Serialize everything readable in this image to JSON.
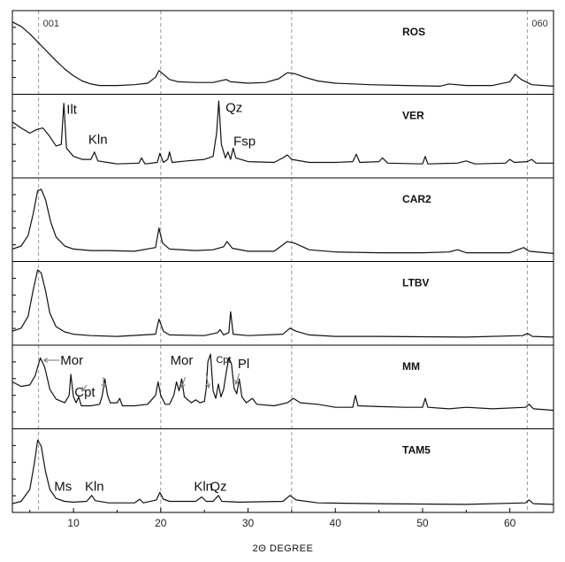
{
  "chart_data": {
    "type": "line",
    "xlabel": "2Θ DEGREE",
    "ylabel": "",
    "xlim": [
      3,
      65
    ],
    "x_ticks": [
      10,
      20,
      30,
      40,
      50,
      60
    ],
    "reference_lines": [
      {
        "x": 6.0,
        "label": "001"
      },
      {
        "x": 20.0,
        "label": ""
      },
      {
        "x": 35.0,
        "label": ""
      },
      {
        "x": 62.0,
        "label": "060"
      }
    ],
    "grid": false,
    "series": [
      {
        "name": "ROS",
        "points": [
          [
            3,
            0.92
          ],
          [
            4,
            0.86
          ],
          [
            5,
            0.76
          ],
          [
            6,
            0.64
          ],
          [
            7,
            0.52
          ],
          [
            8,
            0.4
          ],
          [
            9,
            0.29
          ],
          [
            10,
            0.2
          ],
          [
            11,
            0.13
          ],
          [
            12,
            0.09
          ],
          [
            13,
            0.07
          ],
          [
            15,
            0.07
          ],
          [
            17,
            0.08
          ],
          [
            18.5,
            0.1
          ],
          [
            19.4,
            0.18
          ],
          [
            19.8,
            0.27
          ],
          [
            20.3,
            0.22
          ],
          [
            21,
            0.15
          ],
          [
            22,
            0.12
          ],
          [
            24,
            0.11
          ],
          [
            26,
            0.11
          ],
          [
            27.5,
            0.15
          ],
          [
            28,
            0.12
          ],
          [
            30,
            0.1
          ],
          [
            32,
            0.11
          ],
          [
            33.5,
            0.16
          ],
          [
            34.5,
            0.24
          ],
          [
            35.3,
            0.23
          ],
          [
            36.5,
            0.18
          ],
          [
            38,
            0.13
          ],
          [
            40,
            0.1
          ],
          [
            44,
            0.08
          ],
          [
            48,
            0.07
          ],
          [
            52,
            0.06
          ],
          [
            53,
            0.09
          ],
          [
            55,
            0.07
          ],
          [
            58,
            0.07
          ],
          [
            60,
            0.12
          ],
          [
            60.6,
            0.22
          ],
          [
            61.3,
            0.15
          ],
          [
            62.5,
            0.08
          ],
          [
            65,
            0.06
          ]
        ],
        "annotations": []
      },
      {
        "name": "VER",
        "points": [
          [
            3,
            0.7
          ],
          [
            4,
            0.62
          ],
          [
            5,
            0.55
          ],
          [
            5.8,
            0.6
          ],
          [
            6.5,
            0.62
          ],
          [
            7.2,
            0.52
          ],
          [
            8,
            0.38
          ],
          [
            8.6,
            0.4
          ],
          [
            8.9,
            0.95
          ],
          [
            9.2,
            0.35
          ],
          [
            10,
            0.24
          ],
          [
            11,
            0.2
          ],
          [
            12,
            0.2
          ],
          [
            12.4,
            0.3
          ],
          [
            12.8,
            0.18
          ],
          [
            15,
            0.14
          ],
          [
            17.5,
            0.15
          ],
          [
            17.8,
            0.22
          ],
          [
            18.2,
            0.14
          ],
          [
            19.6,
            0.16
          ],
          [
            19.9,
            0.28
          ],
          [
            20.3,
            0.16
          ],
          [
            20.8,
            0.2
          ],
          [
            21,
            0.3
          ],
          [
            21.3,
            0.16
          ],
          [
            23,
            0.18
          ],
          [
            25,
            0.2
          ],
          [
            26,
            0.24
          ],
          [
            26.4,
            0.55
          ],
          [
            26.65,
            0.98
          ],
          [
            26.95,
            0.4
          ],
          [
            27.4,
            0.22
          ],
          [
            27.7,
            0.3
          ],
          [
            28,
            0.2
          ],
          [
            28.3,
            0.35
          ],
          [
            28.6,
            0.22
          ],
          [
            30,
            0.17
          ],
          [
            33,
            0.16
          ],
          [
            34,
            0.22
          ],
          [
            34.5,
            0.26
          ],
          [
            35,
            0.2
          ],
          [
            37,
            0.16
          ],
          [
            40,
            0.16
          ],
          [
            42,
            0.17
          ],
          [
            42.4,
            0.27
          ],
          [
            42.8,
            0.16
          ],
          [
            45,
            0.17
          ],
          [
            45.4,
            0.22
          ],
          [
            46,
            0.15
          ],
          [
            50,
            0.14
          ],
          [
            50.3,
            0.24
          ],
          [
            50.6,
            0.14
          ],
          [
            54,
            0.15
          ],
          [
            55,
            0.18
          ],
          [
            56,
            0.14
          ],
          [
            59.5,
            0.15
          ],
          [
            60,
            0.2
          ],
          [
            60.5,
            0.16
          ],
          [
            62,
            0.17
          ],
          [
            62.5,
            0.2
          ],
          [
            63,
            0.15
          ],
          [
            65,
            0.15
          ]
        ],
        "annotations": [
          {
            "text": "Ilt",
            "x": 8.9
          },
          {
            "text": "Kln",
            "x": 12.4
          },
          {
            "text": "Qz",
            "x": 26.65
          },
          {
            "text": "Fsp",
            "x": 28.0
          }
        ]
      },
      {
        "name": "CAR2",
        "points": [
          [
            3,
            0.12
          ],
          [
            4,
            0.16
          ],
          [
            4.8,
            0.3
          ],
          [
            5.4,
            0.6
          ],
          [
            5.9,
            0.9
          ],
          [
            6.3,
            0.92
          ],
          [
            6.8,
            0.78
          ],
          [
            7.4,
            0.48
          ],
          [
            8,
            0.28
          ],
          [
            9,
            0.16
          ],
          [
            10,
            0.12
          ],
          [
            12,
            0.1
          ],
          [
            14,
            0.1
          ],
          [
            17,
            0.09
          ],
          [
            19.4,
            0.14
          ],
          [
            19.8,
            0.4
          ],
          [
            20.2,
            0.2
          ],
          [
            21,
            0.12
          ],
          [
            24,
            0.1
          ],
          [
            26,
            0.11
          ],
          [
            27.2,
            0.15
          ],
          [
            27.6,
            0.22
          ],
          [
            28.2,
            0.13
          ],
          [
            30,
            0.09
          ],
          [
            33,
            0.09
          ],
          [
            34.5,
            0.22
          ],
          [
            35.3,
            0.2
          ],
          [
            37,
            0.11
          ],
          [
            40,
            0.08
          ],
          [
            45,
            0.07
          ],
          [
            50,
            0.07
          ],
          [
            53,
            0.08
          ],
          [
            54,
            0.11
          ],
          [
            55,
            0.07
          ],
          [
            60,
            0.07
          ],
          [
            61.6,
            0.14
          ],
          [
            62.2,
            0.09
          ],
          [
            65,
            0.06
          ]
        ],
        "annotations": []
      },
      {
        "name": "LTBV",
        "points": [
          [
            3,
            0.14
          ],
          [
            4,
            0.18
          ],
          [
            4.8,
            0.34
          ],
          [
            5.4,
            0.7
          ],
          [
            5.9,
            0.96
          ],
          [
            6.3,
            0.92
          ],
          [
            6.8,
            0.68
          ],
          [
            7.3,
            0.38
          ],
          [
            8,
            0.2
          ],
          [
            9,
            0.13
          ],
          [
            10,
            0.1
          ],
          [
            12,
            0.08
          ],
          [
            15,
            0.07
          ],
          [
            19.4,
            0.1
          ],
          [
            19.8,
            0.3
          ],
          [
            20.3,
            0.14
          ],
          [
            21,
            0.09
          ],
          [
            25,
            0.08
          ],
          [
            26.5,
            0.12
          ],
          [
            26.8,
            0.16
          ],
          [
            27.2,
            0.09
          ],
          [
            27.8,
            0.12
          ],
          [
            28,
            0.4
          ],
          [
            28.3,
            0.1
          ],
          [
            30,
            0.08
          ],
          [
            34,
            0.1
          ],
          [
            34.8,
            0.18
          ],
          [
            35.5,
            0.14
          ],
          [
            37,
            0.09
          ],
          [
            40,
            0.07
          ],
          [
            45,
            0.07
          ],
          [
            55,
            0.06
          ],
          [
            61.5,
            0.08
          ],
          [
            62,
            0.11
          ],
          [
            62.6,
            0.07
          ],
          [
            65,
            0.06
          ]
        ],
        "annotations": []
      },
      {
        "name": "MM",
        "points": [
          [
            3,
            0.58
          ],
          [
            4,
            0.52
          ],
          [
            5,
            0.54
          ],
          [
            5.6,
            0.66
          ],
          [
            6.2,
            0.9
          ],
          [
            6.7,
            0.78
          ],
          [
            7.3,
            0.48
          ],
          [
            8,
            0.35
          ],
          [
            9,
            0.3
          ],
          [
            9.5,
            0.4
          ],
          [
            9.7,
            0.68
          ],
          [
            10,
            0.38
          ],
          [
            10.3,
            0.3
          ],
          [
            10.6,
            0.38
          ],
          [
            10.9,
            0.26
          ],
          [
            12,
            0.26
          ],
          [
            13,
            0.28
          ],
          [
            13.3,
            0.4
          ],
          [
            13.6,
            0.62
          ],
          [
            13.9,
            0.4
          ],
          [
            14.2,
            0.3
          ],
          [
            15,
            0.3
          ],
          [
            15.3,
            0.36
          ],
          [
            15.6,
            0.26
          ],
          [
            17,
            0.26
          ],
          [
            18.5,
            0.28
          ],
          [
            19.4,
            0.4
          ],
          [
            19.7,
            0.58
          ],
          [
            20,
            0.4
          ],
          [
            20.5,
            0.28
          ],
          [
            21,
            0.28
          ],
          [
            21.5,
            0.4
          ],
          [
            21.8,
            0.58
          ],
          [
            22.1,
            0.46
          ],
          [
            22.4,
            0.62
          ],
          [
            22.7,
            0.38
          ],
          [
            23.5,
            0.3
          ],
          [
            24,
            0.34
          ],
          [
            24.5,
            0.3
          ],
          [
            25,
            0.32
          ],
          [
            25.2,
            0.48
          ],
          [
            25.4,
            0.85
          ],
          [
            25.7,
            0.95
          ],
          [
            26,
            0.46
          ],
          [
            26.3,
            0.36
          ],
          [
            26.6,
            0.55
          ],
          [
            26.9,
            0.38
          ],
          [
            27.2,
            0.48
          ],
          [
            27.5,
            0.7
          ],
          [
            27.8,
            0.9
          ],
          [
            28.1,
            0.82
          ],
          [
            28.4,
            0.5
          ],
          [
            28.7,
            0.42
          ],
          [
            29,
            0.62
          ],
          [
            29.3,
            0.38
          ],
          [
            29.8,
            0.3
          ],
          [
            30.5,
            0.36
          ],
          [
            31,
            0.28
          ],
          [
            33,
            0.26
          ],
          [
            34.5,
            0.3
          ],
          [
            35.2,
            0.36
          ],
          [
            36,
            0.3
          ],
          [
            38,
            0.28
          ],
          [
            40,
            0.24
          ],
          [
            42,
            0.24
          ],
          [
            42.3,
            0.4
          ],
          [
            42.6,
            0.26
          ],
          [
            45,
            0.25
          ],
          [
            48,
            0.24
          ],
          [
            50,
            0.24
          ],
          [
            50.3,
            0.36
          ],
          [
            50.6,
            0.24
          ],
          [
            53,
            0.22
          ],
          [
            55,
            0.24
          ],
          [
            58,
            0.22
          ],
          [
            61.8,
            0.24
          ],
          [
            62.2,
            0.28
          ],
          [
            62.7,
            0.22
          ],
          [
            65,
            0.2
          ]
        ],
        "annotations": [
          {
            "text": "Mor",
            "x": 6.2
          },
          {
            "text": "Cpt",
            "x": 10.6
          },
          {
            "text": "Mor",
            "x": 22.4
          },
          {
            "text": "Cpt",
            "x": 25.7
          },
          {
            "text": "Pl",
            "x": 28.1
          }
        ]
      },
      {
        "name": "TAM5",
        "points": [
          [
            3,
            0.07
          ],
          [
            4,
            0.1
          ],
          [
            5,
            0.26
          ],
          [
            5.5,
            0.6
          ],
          [
            5.9,
            0.92
          ],
          [
            6.3,
            0.84
          ],
          [
            6.8,
            0.5
          ],
          [
            7.3,
            0.26
          ],
          [
            8,
            0.14
          ],
          [
            9,
            0.1
          ],
          [
            10,
            0.09
          ],
          [
            11.5,
            0.1
          ],
          [
            12.1,
            0.18
          ],
          [
            12.5,
            0.11
          ],
          [
            14,
            0.08
          ],
          [
            17,
            0.08
          ],
          [
            17.6,
            0.13
          ],
          [
            18,
            0.08
          ],
          [
            19.5,
            0.12
          ],
          [
            19.9,
            0.22
          ],
          [
            20.3,
            0.13
          ],
          [
            21,
            0.1
          ],
          [
            24,
            0.1
          ],
          [
            24.7,
            0.16
          ],
          [
            25.2,
            0.1
          ],
          [
            26,
            0.1
          ],
          [
            26.6,
            0.18
          ],
          [
            27,
            0.1
          ],
          [
            29,
            0.09
          ],
          [
            34,
            0.1
          ],
          [
            34.8,
            0.18
          ],
          [
            35.5,
            0.12
          ],
          [
            38,
            0.08
          ],
          [
            45,
            0.07
          ],
          [
            55,
            0.06
          ],
          [
            61.8,
            0.08
          ],
          [
            62.2,
            0.12
          ],
          [
            62.7,
            0.07
          ],
          [
            65,
            0.06
          ]
        ],
        "annotations": [
          {
            "text": "Ms",
            "x": 8.8
          },
          {
            "text": "Kln",
            "x": 12.4
          },
          {
            "text": "Kln",
            "x": 24.9
          },
          {
            "text": "Qz",
            "x": 26.6
          }
        ]
      }
    ]
  }
}
